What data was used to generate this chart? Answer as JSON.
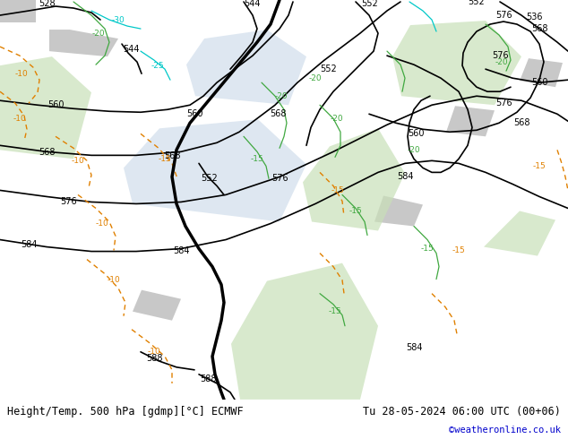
{
  "title_left": "Height/Temp. 500 hPa [gdmp][°C] ECMWF",
  "title_right": "Tu 28-05-2024 06:00 UTC (00+06)",
  "credit": "©weatheronline.co.uk",
  "bg_color": "#d0d0d0",
  "map_bg_light": "#e8f5e0",
  "map_bg_dark": "#c8e0b8",
  "water_color": "#b8d0e8",
  "land_gray": "#c8c8c8",
  "fig_width": 6.34,
  "fig_height": 4.9,
  "dpi": 100,
  "bottom_bar_color": "#f0f0f0",
  "contour_black_color": "#000000",
  "contour_green_color": "#40a840",
  "contour_cyan_color": "#00c8c8",
  "contour_orange_color": "#e08000",
  "label_black": "#000000",
  "label_green": "#40a840",
  "label_cyan": "#00b8b8",
  "label_orange": "#e08000"
}
